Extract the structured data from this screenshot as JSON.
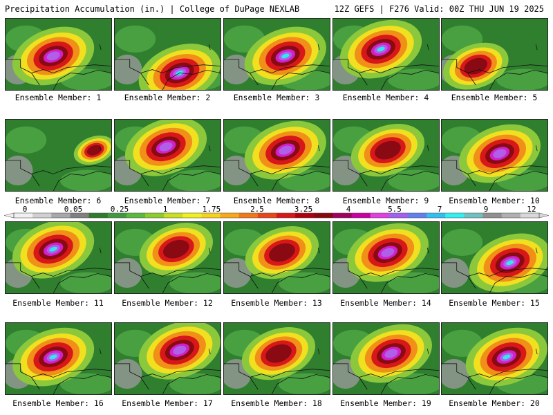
{
  "header": {
    "left": "Precipitation Accumulation (in.) | College of DuPage NEXLAB",
    "right": "12Z GEFS | F276 Valid: 00Z THU JUN 19 2025"
  },
  "members": [
    "Ensemble Member: 1",
    "Ensemble Member: 2",
    "Ensemble Member: 3",
    "Ensemble Member: 4",
    "Ensemble Member: 5",
    "Ensemble Member: 6",
    "Ensemble Member: 7",
    "Ensemble Member: 8",
    "Ensemble Member: 9",
    "Ensemble Member: 10",
    "Ensemble Member: 11",
    "Ensemble Member: 12",
    "Ensemble Member: 13",
    "Ensemble Member: 14",
    "Ensemble Member: 15",
    "Ensemble Member: 16",
    "Ensemble Member: 17",
    "Ensemble Member: 18",
    "Ensemble Member: 19",
    "Ensemble Member: 20"
  ],
  "colorbar": {
    "labels": [
      "0",
      "0.05",
      "0.25",
      "1",
      "1.75",
      "2.5",
      "3.25",
      "4",
      "5.5",
      "7",
      "9",
      "12"
    ],
    "colors": [
      "#f0f0f0",
      "#d0d0d0",
      "#a8a8a8",
      "#808080",
      "#2e7a2e",
      "#3f9a3f",
      "#5cb83c",
      "#8ccc2c",
      "#c8e020",
      "#f0f020",
      "#f8d020",
      "#f8a818",
      "#f07818",
      "#e84818",
      "#d81818",
      "#b00010",
      "#880810",
      "#a00060",
      "#c800a0",
      "#e040e0",
      "#a060f0",
      "#6080f0",
      "#30c0f0",
      "#30f0f0",
      "#70c0c0",
      "#909090",
      "#b0b0b0",
      "#d8d8d8"
    ]
  },
  "panel_colors": {
    "land_dark": "#2f7f2f",
    "land_mid": "#48a040",
    "land_light": "#8cc83c",
    "gray": "#9a9a9a",
    "yellow": "#f0e020",
    "orange": "#f09018",
    "red": "#d81818",
    "darkred": "#8a0a14",
    "magenta": "#d020c8",
    "violet": "#b060e8",
    "cyan": "#30e8f0",
    "border": "#111111"
  }
}
